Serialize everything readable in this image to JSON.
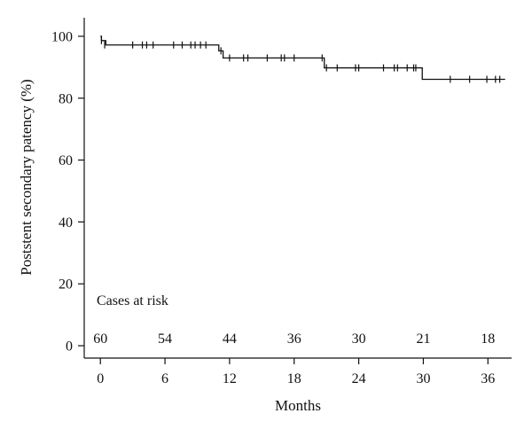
{
  "chart_data": {
    "type": "line",
    "subtype": "kaplan-meier",
    "title": "",
    "xlabel": "Months",
    "ylabel": "Poststent secondary patency (%)",
    "xlim": [
      -1.5,
      38.2
    ],
    "ylim": [
      -4,
      106
    ],
    "x_ticks": [
      0,
      6,
      12,
      18,
      24,
      30,
      36
    ],
    "y_ticks": [
      0,
      20,
      40,
      60,
      80,
      100
    ],
    "grid": false,
    "legend": "none",
    "line_color": "#111111",
    "series": [
      {
        "steps": [
          {
            "x": 0,
            "y": 100
          },
          {
            "x": 0.1,
            "y": 98.6
          },
          {
            "x": 0.5,
            "y": 97.2
          },
          {
            "x": 11.0,
            "y": 95.3
          },
          {
            "x": 11.4,
            "y": 93.0
          },
          {
            "x": 20.8,
            "y": 89.8
          },
          {
            "x": 29.9,
            "y": 86.1
          },
          {
            "x": 37.6,
            "y": 86.1
          }
        ],
        "censored": [
          {
            "x": 0.1,
            "y": 98.6
          },
          {
            "x": 0.4,
            "y": 97.2
          },
          {
            "x": 3.0,
            "y": 97.2
          },
          {
            "x": 3.9,
            "y": 97.2
          },
          {
            "x": 4.3,
            "y": 97.2
          },
          {
            "x": 4.9,
            "y": 97.2
          },
          {
            "x": 6.8,
            "y": 97.2
          },
          {
            "x": 7.6,
            "y": 97.2
          },
          {
            "x": 8.4,
            "y": 97.2
          },
          {
            "x": 8.8,
            "y": 97.2
          },
          {
            "x": 9.3,
            "y": 97.2
          },
          {
            "x": 9.8,
            "y": 97.2
          },
          {
            "x": 11.2,
            "y": 95.3
          },
          {
            "x": 12.0,
            "y": 93.0
          },
          {
            "x": 13.3,
            "y": 93.0
          },
          {
            "x": 13.7,
            "y": 93.0
          },
          {
            "x": 15.5,
            "y": 93.0
          },
          {
            "x": 16.8,
            "y": 93.0
          },
          {
            "x": 17.1,
            "y": 93.0
          },
          {
            "x": 18.0,
            "y": 93.0
          },
          {
            "x": 20.6,
            "y": 93.0
          },
          {
            "x": 21.0,
            "y": 89.8
          },
          {
            "x": 22.0,
            "y": 89.8
          },
          {
            "x": 23.7,
            "y": 89.8
          },
          {
            "x": 24.0,
            "y": 89.8
          },
          {
            "x": 26.3,
            "y": 89.8
          },
          {
            "x": 27.3,
            "y": 89.8
          },
          {
            "x": 27.6,
            "y": 89.8
          },
          {
            "x": 28.5,
            "y": 89.8
          },
          {
            "x": 29.1,
            "y": 89.8
          },
          {
            "x": 29.3,
            "y": 89.8
          },
          {
            "x": 32.5,
            "y": 86.1
          },
          {
            "x": 34.3,
            "y": 86.1
          },
          {
            "x": 35.9,
            "y": 86.1
          },
          {
            "x": 36.7,
            "y": 86.1
          },
          {
            "x": 37.1,
            "y": 86.1
          }
        ]
      }
    ],
    "risk_table": {
      "title": "Cases at risk",
      "y": 0,
      "entries": [
        {
          "x": 0,
          "value": "60"
        },
        {
          "x": 6,
          "value": "54"
        },
        {
          "x": 12,
          "value": "44"
        },
        {
          "x": 18,
          "value": "36"
        },
        {
          "x": 24,
          "value": "30"
        },
        {
          "x": 30,
          "value": "21"
        },
        {
          "x": 36,
          "value": "18"
        }
      ]
    }
  }
}
